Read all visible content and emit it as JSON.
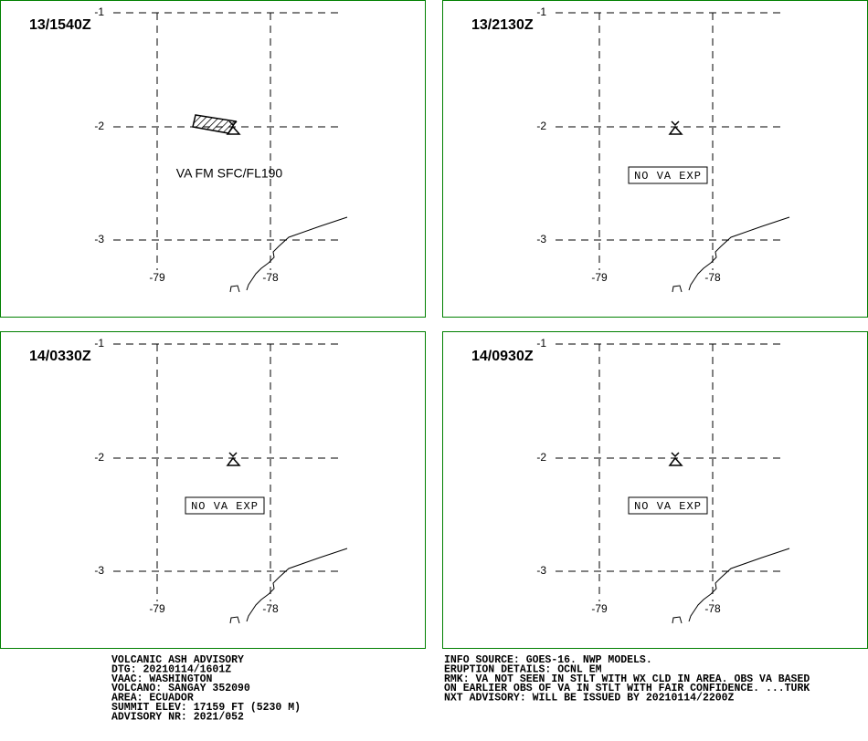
{
  "lat_labels": [
    "-1",
    "-2",
    "-3"
  ],
  "lon_labels": [
    "-79",
    "-78"
  ],
  "panels": [
    {
      "time": "13/1540Z",
      "annotation": "VA FM SFC/FL190",
      "boxed": false,
      "ash_area": true
    },
    {
      "time": "13/2130Z",
      "annotation": "NO VA EXP",
      "boxed": true,
      "ash_area": false
    },
    {
      "time": "14/0330Z",
      "annotation": "NO VA EXP",
      "boxed": true,
      "ash_area": false
    },
    {
      "time": "14/0930Z",
      "annotation": "NO VA EXP",
      "boxed": true,
      "ash_area": false
    }
  ],
  "footer": {
    "left": [
      "VOLCANIC ASH ADVISORY",
      "DTG: 20210114/1601Z",
      "VAAC: WASHINGTON",
      "VOLCANO: SANGAY 352090",
      "AREA: ECUADOR",
      "SUMMIT ELEV: 17159 FT (5230 M)",
      "ADVISORY NR: 2021/052"
    ],
    "right": [
      "INFO SOURCE: GOES-16. NWP MODELS.",
      "ERUPTION DETAILS: OCNL EM",
      "RMK: VA NOT SEEN IN STLT WITH WX CLD IN AREA. OBS VA BASED",
      "ON EARLIER OBS OF VA IN STLT WITH FAIR CONFIDENCE. ...TURK",
      "NXT ADVISORY: WILL BE ISSUED BY 20210114/2200Z"
    ]
  }
}
